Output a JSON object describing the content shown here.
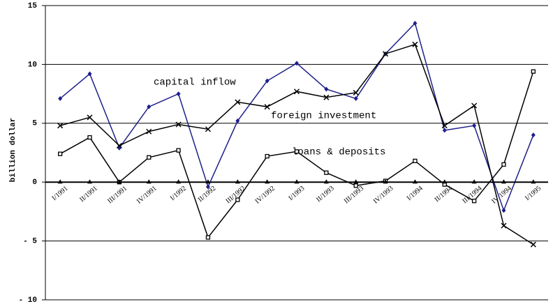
{
  "chart_data": {
    "type": "line",
    "y_label": "billion dollar",
    "categories": [
      "I/1991",
      "II/1991",
      "III/1991",
      "IV/1991",
      "I/1992",
      "II/1992",
      "III/1992",
      "IV/1992",
      "I/1993",
      "II/1993",
      "III/1993",
      "IV/1993",
      "I/1994",
      "II/1994",
      "III/1994",
      "IV/1994",
      "I/1995"
    ],
    "series": [
      {
        "color": "#1f1f8a",
        "marker": "diamond",
        "values": [
          7.1,
          9.2,
          2.9,
          6.4,
          7.5,
          -0.4,
          5.2,
          8.6,
          10.1,
          7.9,
          7.1,
          10.9,
          13.5,
          4.4,
          4.8,
          -2.4,
          4.0
        ]
      },
      {
        "color": "#000000",
        "marker": "x",
        "values": [
          4.8,
          5.5,
          3.1,
          4.3,
          4.9,
          4.5,
          6.8,
          6.4,
          7.7,
          7.2,
          7.6,
          10.9,
          11.7,
          4.8,
          6.5,
          -3.7,
          -5.3
        ]
      },
      {
        "color": "#000000",
        "marker": "square",
        "values": [
          2.4,
          3.8,
          0.0,
          2.1,
          2.7,
          -4.7,
          -1.5,
          2.2,
          2.6,
          0.8,
          -0.3,
          0.1,
          1.8,
          -0.2,
          -1.6,
          1.5,
          9.4
        ]
      },
      {
        "color": "#000000",
        "marker": "triangle",
        "values": [
          0,
          0,
          0,
          0,
          0,
          0,
          0,
          0,
          0,
          0,
          0,
          0,
          0,
          0,
          0,
          0,
          0
        ]
      }
    ],
    "annotations": [
      {
        "text": "capital inflow",
        "series": 0
      },
      {
        "text": "foreign investment",
        "series": 1
      },
      {
        "text": "loans & deposits",
        "series": 2
      }
    ],
    "ylim": [
      -10,
      15
    ],
    "yticks": [
      {
        "value": -10,
        "label": "- 10"
      },
      {
        "value": -5,
        "label": "- 5"
      },
      0,
      5,
      10,
      15
    ],
    "grid": true
  }
}
